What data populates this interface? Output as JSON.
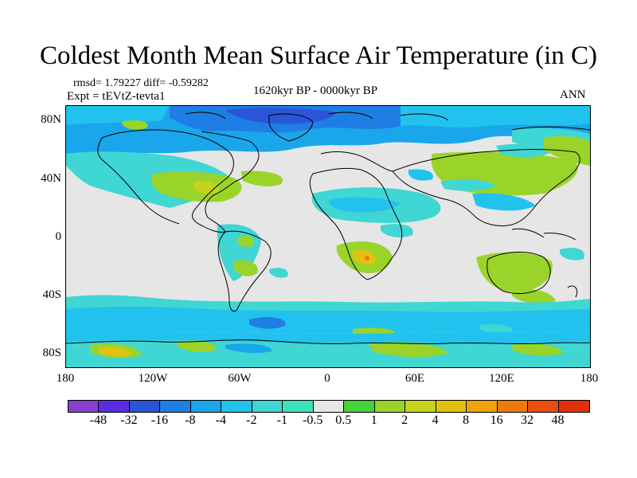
{
  "title": "Coldest Month Mean Surface Air Temperature (in C)",
  "stats": "rmsd= 1.79227 diff= -0.59282",
  "experiment": "Expt = tEVtZ-tevta1",
  "period": "1620kyr BP - 0000kyr BP",
  "season": "ANN",
  "y_axis_labels": [
    "80N",
    "40N",
    "0",
    "40S",
    "80S"
  ],
  "x_axis_labels": [
    "180",
    "120W",
    "60W",
    "0",
    "60E",
    "120E",
    "180"
  ],
  "colorbar": {
    "labels": [
      "-48",
      "-32",
      "-16",
      "-8",
      "-4",
      "-2",
      "-1",
      "-0.5",
      "0.5",
      "1",
      "2",
      "4",
      "8",
      "16",
      "32",
      "48"
    ],
    "colors": [
      "#8a3fd1",
      "#5a2ee0",
      "#2b55d8",
      "#1f7ee3",
      "#1aa6ea",
      "#22c2ef",
      "#3fd6d3",
      "#3ee0b8",
      "#e6e6e6",
      "#44d43a",
      "#9ad42a",
      "#c6d21e",
      "#e3c20f",
      "#eea20c",
      "#ee7a0a",
      "#e84e0c",
      "#e1300c"
    ]
  }
}
